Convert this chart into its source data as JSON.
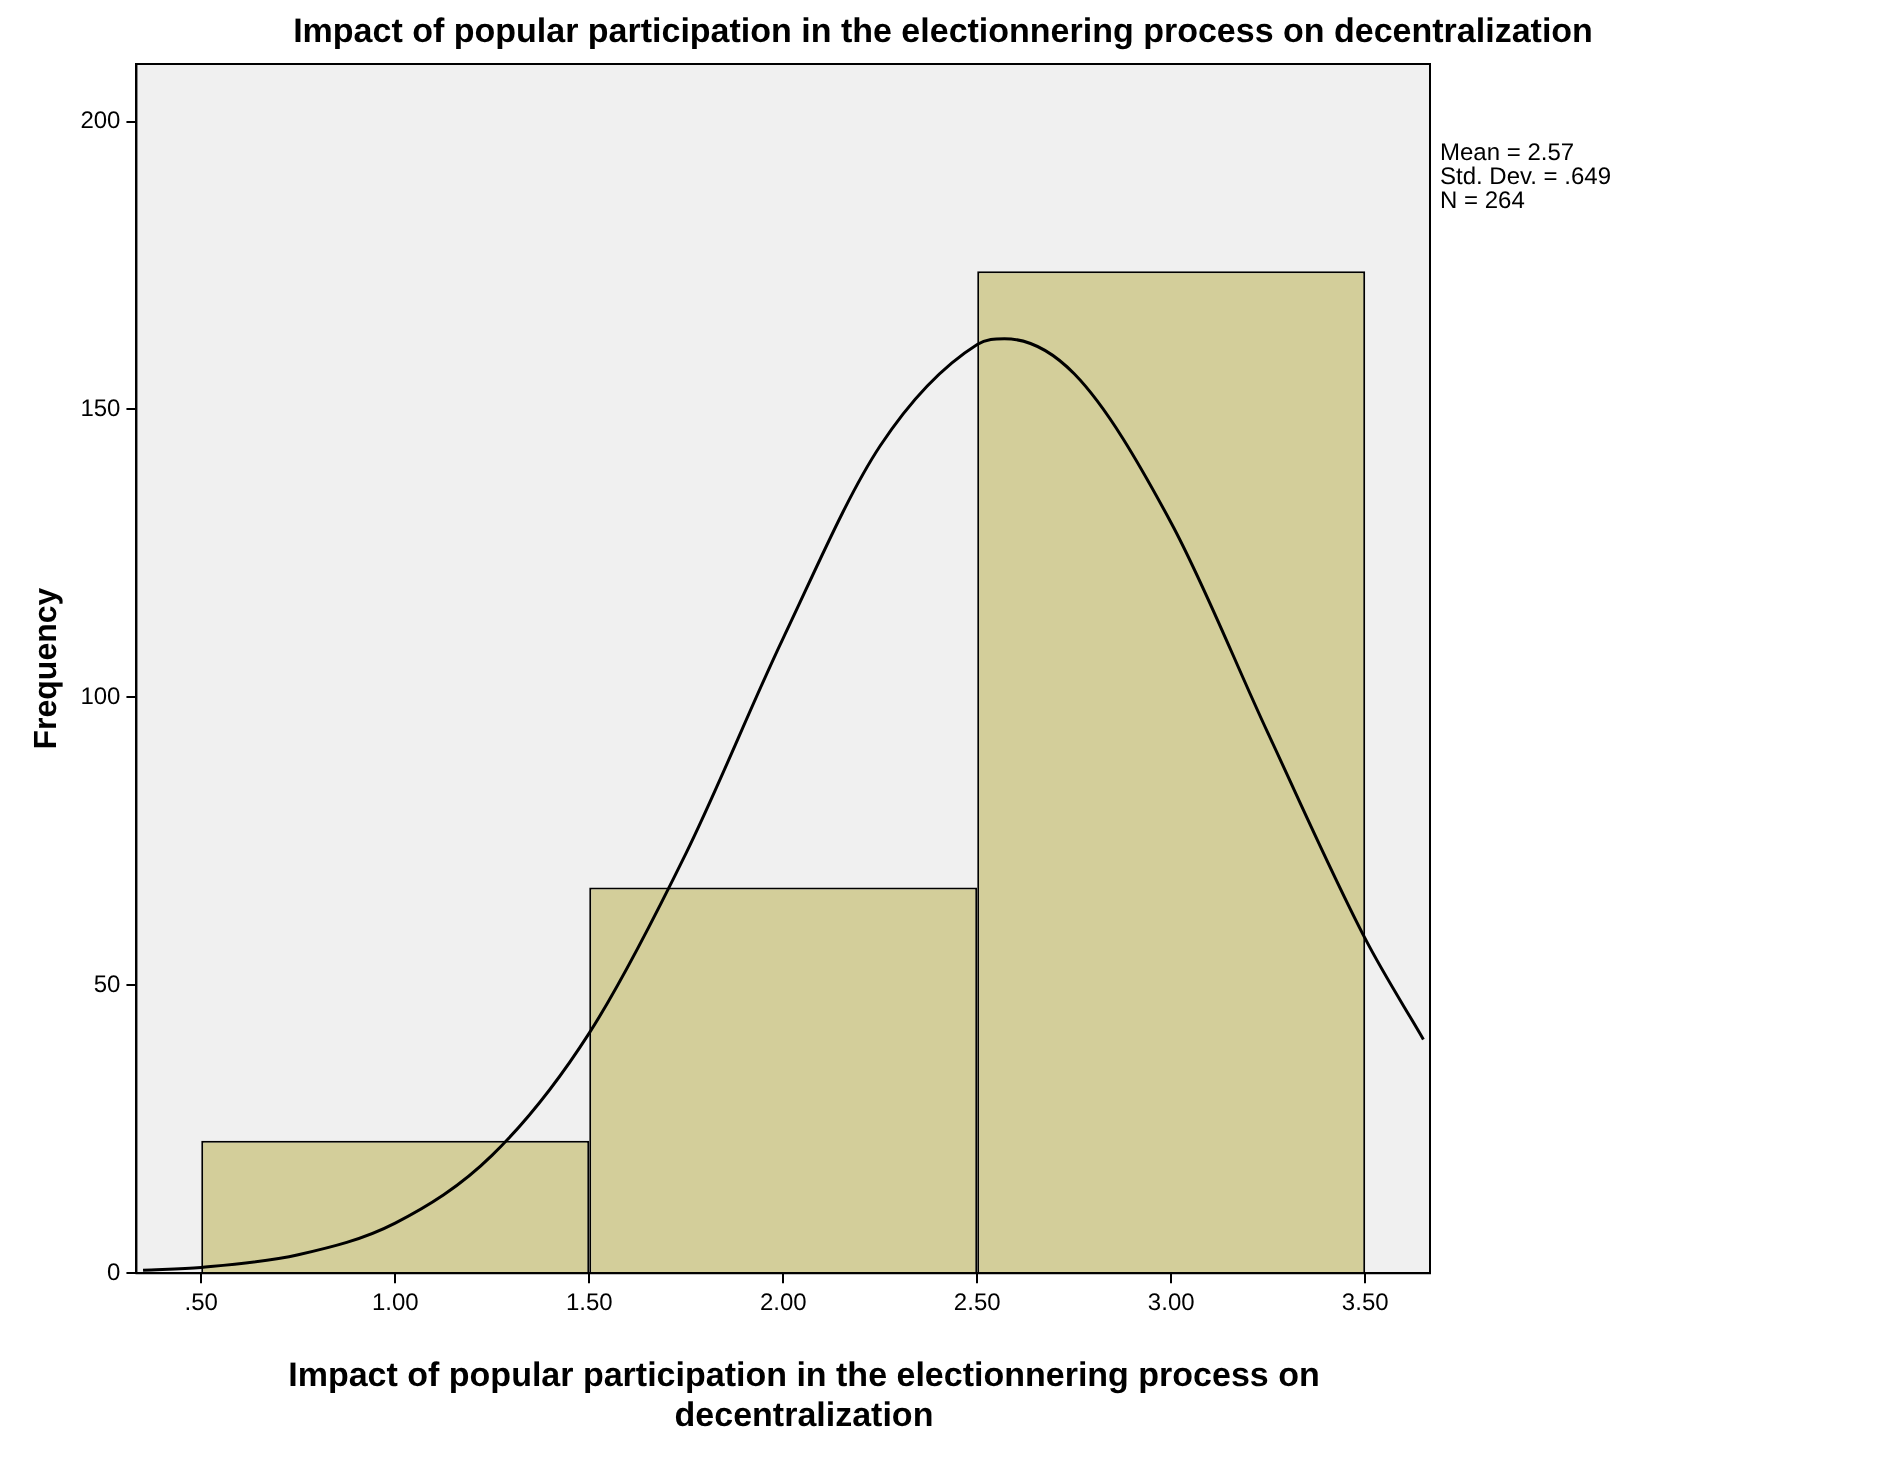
{
  "chart_data": {
    "type": "histogram",
    "title": "Impact of popular participation in the electionnering process on decentralization",
    "xlabel": "Impact of popular participation in the electionnering process on decentralization",
    "ylabel": "Frequency",
    "bins": [
      0.5,
      1.5,
      2.5,
      3.5
    ],
    "values": [
      23,
      67,
      174
    ],
    "color": "#d3ce9a",
    "series": [
      {
        "type": "line",
        "color": "#000000",
        "x": [
          0.35,
          0.5,
          0.75,
          1.0,
          1.25,
          1.5,
          1.75,
          2.0,
          2.25,
          2.5,
          2.57,
          2.75,
          3.0,
          3.25,
          3.5,
          3.65
        ],
        "values": [
          0.5,
          1.0,
          3.2,
          8.7,
          20.5,
          41.7,
          73.0,
          110.3,
          143.7,
          161.3,
          162.3,
          156.2,
          130.3,
          93.7,
          58.1,
          40.6
        ]
      }
    ],
    "xlim": [
      0.333,
      3.667
    ],
    "xticks": [
      {
        "value": 0.5,
        "label": ".50"
      },
      {
        "value": 1.0,
        "label": "1.00"
      },
      {
        "value": 1.5,
        "label": "1.50"
      },
      {
        "value": 2.0,
        "label": "2.00"
      },
      {
        "value": 2.5,
        "label": "2.50"
      },
      {
        "value": 3.0,
        "label": "3.00"
      },
      {
        "value": 3.5,
        "label": "3.50"
      }
    ],
    "ylim": [
      0,
      210
    ],
    "yticks": [
      0,
      50,
      100,
      150,
      200
    ],
    "annotations": [
      "Mean = 2.57",
      "Std. Dev. = .649",
      "N = 264"
    ],
    "grid": false,
    "legend": false,
    "marker": "none",
    "line_style": "solid"
  }
}
